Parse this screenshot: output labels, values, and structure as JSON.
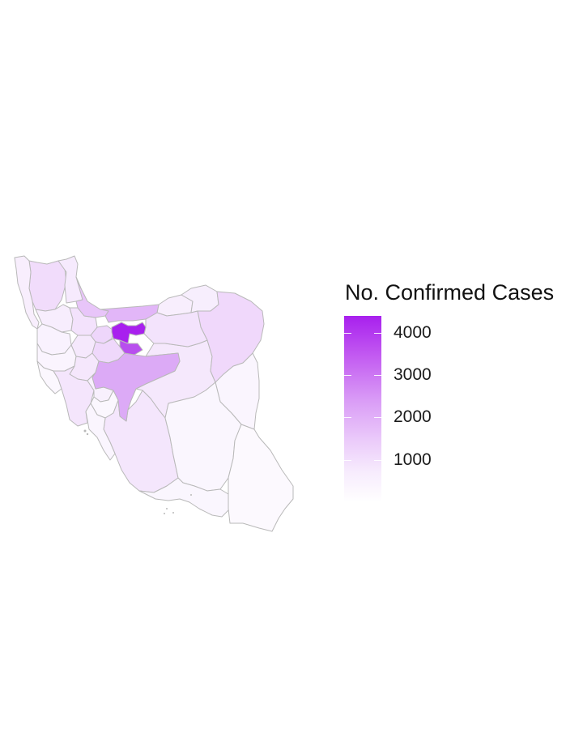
{
  "legend": {
    "title": "No. Confirmed Cases",
    "min": 0,
    "max": 4400,
    "color_high": "#a820ee",
    "color_low": "#ffffff",
    "ticks": [
      {
        "value": 4000,
        "label": "4000"
      },
      {
        "value": 3000,
        "label": "3000"
      },
      {
        "value": 2000,
        "label": "2000"
      },
      {
        "value": 1000,
        "label": "1000"
      }
    ]
  },
  "map": {
    "country": "Iran",
    "border_color": "#b9b9b9",
    "provinces": [
      {
        "name": "Tehran",
        "level": "highest",
        "fill": "#a820ee"
      },
      {
        "name": "Qom",
        "level": "very-high",
        "fill": "#b84fee"
      },
      {
        "name": "Mazandaran",
        "level": "high",
        "fill": "#e2b6f8"
      },
      {
        "name": "Gilan",
        "level": "high",
        "fill": "#e8c5f9"
      },
      {
        "name": "Isfahan",
        "level": "high",
        "fill": "#dcaaf6"
      },
      {
        "name": "Khorasan Razavi",
        "level": "medium",
        "fill": "#f0d8fb"
      },
      {
        "name": "Semnan",
        "level": "medium",
        "fill": "#f3e3fc"
      },
      {
        "name": "Alborz",
        "level": "medium",
        "fill": "#eed6fb"
      },
      {
        "name": "Markazi",
        "level": "medium",
        "fill": "#efd8fb"
      },
      {
        "name": "Golestan",
        "level": "low",
        "fill": "#f8eefd"
      },
      {
        "name": "North Khorasan",
        "level": "low",
        "fill": "#f7eefd"
      },
      {
        "name": "South Khorasan",
        "level": "low",
        "fill": "#faf5fe"
      },
      {
        "name": "Yazd",
        "level": "low",
        "fill": "#f5e8fc"
      },
      {
        "name": "East Azerbaijan",
        "level": "low",
        "fill": "#f1dcfb"
      },
      {
        "name": "West Azerbaijan",
        "level": "low",
        "fill": "#f8eefd"
      },
      {
        "name": "Ardabil",
        "level": "low",
        "fill": "#f6eafd"
      },
      {
        "name": "Zanjan",
        "level": "low",
        "fill": "#f7edfd"
      },
      {
        "name": "Qazvin",
        "level": "low",
        "fill": "#f3e2fc"
      },
      {
        "name": "Kurdistan",
        "level": "low",
        "fill": "#f9f2fe"
      },
      {
        "name": "Hamadan",
        "level": "low",
        "fill": "#f5e8fc"
      },
      {
        "name": "Kermanshah",
        "level": "low",
        "fill": "#faf4fe"
      },
      {
        "name": "Ilam",
        "level": "low",
        "fill": "#fbf7fe"
      },
      {
        "name": "Lorestan",
        "level": "low",
        "fill": "#f5e7fc"
      },
      {
        "name": "Khuzestan",
        "level": "low",
        "fill": "#f4e5fc"
      },
      {
        "name": "Chaharmahal and Bakhtiari",
        "level": "low",
        "fill": "#f8f0fd"
      },
      {
        "name": "Kohgiluyeh and Boyer-Ahmad",
        "level": "low",
        "fill": "#fbf7fe"
      },
      {
        "name": "Fars",
        "level": "low",
        "fill": "#f4e6fc"
      },
      {
        "name": "Bushehr",
        "level": "low",
        "fill": "#faf5fe"
      },
      {
        "name": "Kerman",
        "level": "low",
        "fill": "#faf6fe"
      },
      {
        "name": "Hormozgan",
        "level": "low",
        "fill": "#faf6fe"
      },
      {
        "name": "Sistan and Baluchestan",
        "level": "low",
        "fill": "#fcf9fe"
      }
    ]
  }
}
